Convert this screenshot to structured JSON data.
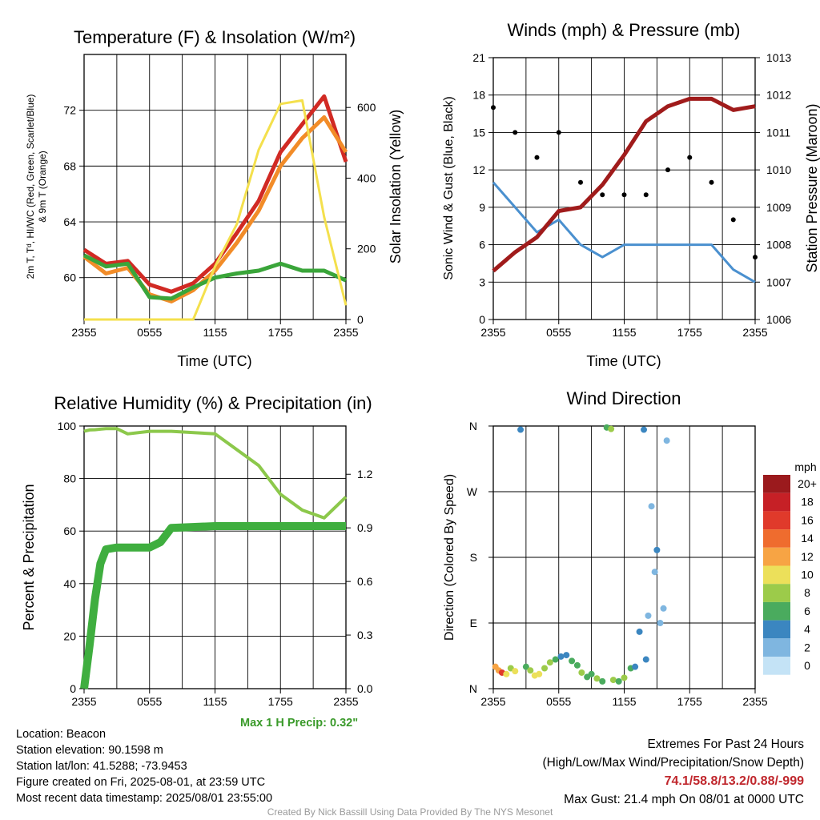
{
  "panels": {
    "temp": {
      "title": "Temperature (F) & Insolation (W/m²)",
      "xlabel": "Time (UTC)",
      "ylabel_left_line1": "2m T, Tᵈ, HI/WC (Red, Green, Scarlet/Blue)",
      "ylabel_left_line2": "& 9m T (Orange)",
      "ylabel_right": "Solar Insolation (Yellow)"
    },
    "wind": {
      "title": "Winds (mph) & Pressure (mb)",
      "xlabel": "Time (UTC)",
      "ylabel_left": "Sonic Wind & Gust (Blue, Black)",
      "ylabel_right": "Station Pressure (Maroon)"
    },
    "rh": {
      "title": "Relative Humidity (%) & Precipitation (in)",
      "ylabel_left": "Percent & Precipitation",
      "precip_note": "Max 1 H Precip: 0.32\""
    },
    "dir": {
      "title": "Wind Direction",
      "ylabel_left": "Direction (Colored By Speed)",
      "legend_title": "mph",
      "legend_labels": [
        "20+",
        "18",
        "16",
        "14",
        "12",
        "10",
        "8",
        "6",
        "4",
        "2",
        "0"
      ],
      "legend_colors": [
        "#9b1a1d",
        "#c62026",
        "#e03a2b",
        "#ef6c2e",
        "#f7a444",
        "#ece05a",
        "#9ccb4a",
        "#4aab5e",
        "#3b86c0",
        "#7fb6e0",
        "#c4e3f6"
      ]
    }
  },
  "info": {
    "location": "Location: Beacon",
    "elevation": "Station elevation: 90.1598 m",
    "latlon": "Station lat/lon: 41.5288; -73.9453",
    "created": "Figure created on Fri, 2025-08-01, at 23:59 UTC",
    "recent": "Most recent data timestamp: 2025/08/01 23:55:00"
  },
  "extremes": {
    "line1": "Extremes For Past 24 Hours",
    "line2": "(High/Low/Max Wind/Precipitation/Snow Depth)",
    "values": "74.1/58.8/13.2/0.88/-999",
    "gust": "Max Gust: 21.4 mph On 08/01 at 0000 UTC"
  },
  "credit": "Created By Nick Bassill Using Data Provided By The NYS Mesonet",
  "chart_data": [
    {
      "type": "line",
      "title": "Temperature (F) & Insolation (W/m²)",
      "xlabel": "Time (UTC)",
      "x_ticks": [
        "2355",
        "0555",
        "1155",
        "1755",
        "2355"
      ],
      "x": [
        0,
        2,
        4,
        6,
        8,
        10,
        12,
        14,
        16,
        18,
        20,
        22,
        24
      ],
      "ylim": [
        57,
        76
      ],
      "y_ticks": [
        60,
        64,
        68,
        72
      ],
      "y2lim": [
        0,
        750
      ],
      "y2_ticks": [
        0,
        200,
        400,
        600
      ],
      "series": [
        {
          "name": "2m T (Red)",
          "color": "#d12a24",
          "axis": "left",
          "values": [
            62.0,
            61.0,
            61.2,
            59.5,
            59.0,
            59.6,
            61.0,
            63.2,
            65.5,
            69.0,
            71.0,
            73.0,
            68.3
          ]
        },
        {
          "name": "9m T (Orange)",
          "color": "#f28c28",
          "axis": "left",
          "values": [
            61.5,
            60.3,
            60.7,
            58.8,
            58.3,
            59.1,
            60.5,
            62.5,
            64.8,
            68.0,
            70.0,
            71.5,
            69.0
          ]
        },
        {
          "name": "Td (Green)",
          "color": "#3aa53a",
          "axis": "left",
          "values": [
            61.6,
            60.8,
            61.0,
            58.6,
            58.5,
            59.3,
            60.0,
            60.3,
            60.5,
            61.0,
            60.5,
            60.5,
            59.8
          ]
        },
        {
          "name": "Solar Insolation (Yellow)",
          "color": "#f4e04d",
          "axis": "right",
          "values": [
            0,
            0,
            0,
            0,
            0,
            0,
            150,
            270,
            480,
            610,
            620,
            290,
            40
          ]
        }
      ]
    },
    {
      "type": "line",
      "title": "Winds (mph) & Pressure (mb)",
      "xlabel": "Time (UTC)",
      "x_ticks": [
        "2355",
        "0555",
        "1155",
        "1755",
        "2355"
      ],
      "x": [
        0,
        2,
        4,
        6,
        8,
        10,
        12,
        14,
        16,
        18,
        20,
        22,
        24
      ],
      "ylim": [
        0,
        21
      ],
      "y_ticks": [
        0,
        3,
        6,
        9,
        12,
        15,
        18,
        21
      ],
      "y2lim": [
        1006,
        1013
      ],
      "y2_ticks": [
        1006,
        1007,
        1008,
        1009,
        1010,
        1011,
        1012,
        1013
      ],
      "series": [
        {
          "name": "Sonic Wind (Blue)",
          "color": "#4a90cf",
          "axis": "left",
          "values": [
            11,
            9,
            7,
            8,
            6,
            5,
            6,
            6,
            6,
            6,
            6,
            4,
            3
          ]
        },
        {
          "name": "Gust (Black)",
          "color": "#000000",
          "axis": "left",
          "values": [
            17,
            15,
            13,
            15,
            11,
            10,
            10,
            10,
            12,
            13,
            11,
            8,
            5
          ]
        },
        {
          "name": "Station Pressure (Maroon)",
          "color": "#a01b1b",
          "axis": "right",
          "values": [
            1007.3,
            1007.8,
            1008.2,
            1008.9,
            1009.0,
            1009.6,
            1010.4,
            1011.3,
            1011.7,
            1011.9,
            1011.9,
            1011.6,
            1011.7
          ]
        }
      ]
    },
    {
      "type": "line",
      "title": "Relative Humidity (%) & Precipitation (in)",
      "x_ticks": [
        "2355",
        "0555",
        "1155",
        "1755",
        "2355"
      ],
      "x": [
        0,
        0.5,
        1,
        1.5,
        2,
        3,
        4,
        6,
        7,
        8,
        12,
        16,
        18,
        20,
        22,
        24
      ],
      "ylim": [
        0,
        100
      ],
      "y_ticks": [
        0,
        20,
        40,
        60,
        80,
        100
      ],
      "y2lim": [
        0.0,
        1.47
      ],
      "y2_ticks": [
        0.0,
        0.3,
        0.6,
        0.9,
        1.2
      ],
      "series": [
        {
          "name": "Relative Humidity",
          "color": "#8cc84b",
          "axis": "left",
          "values": [
            98,
            98.5,
            98.6,
            98.8,
            99,
            99,
            97,
            98,
            98,
            98,
            97,
            85,
            74,
            68,
            65,
            73
          ]
        },
        {
          "name": "Precipitation",
          "color": "#3fae3f",
          "axis": "right",
          "values": [
            0.0,
            0.24,
            0.5,
            0.7,
            0.78,
            0.79,
            0.79,
            0.79,
            0.82,
            0.9,
            0.91,
            0.91,
            0.91,
            0.91,
            0.91,
            0.91
          ]
        }
      ]
    },
    {
      "type": "scatter",
      "title": "Wind Direction",
      "x_ticks": [
        "2355",
        "0555",
        "1155",
        "1755",
        "2355"
      ],
      "y_ticks": [
        "N",
        "E",
        "S",
        "W",
        "N"
      ],
      "ylim": [
        0,
        360
      ],
      "colorbar": "mph",
      "points": [
        {
          "x": 0.2,
          "dir": 30,
          "speed": 12
        },
        {
          "x": 0.5,
          "dir": 25,
          "speed": 11
        },
        {
          "x": 0.8,
          "dir": 22,
          "speed": 16
        },
        {
          "x": 1.2,
          "dir": 20,
          "speed": 10
        },
        {
          "x": 1.6,
          "dir": 28,
          "speed": 8
        },
        {
          "x": 2.0,
          "dir": 24,
          "speed": 9
        },
        {
          "x": 2.5,
          "dir": 355,
          "speed": 4
        },
        {
          "x": 3.0,
          "dir": 30,
          "speed": 6
        },
        {
          "x": 3.4,
          "dir": 25,
          "speed": 8
        },
        {
          "x": 3.8,
          "dir": 18,
          "speed": 10
        },
        {
          "x": 4.2,
          "dir": 20,
          "speed": 9
        },
        {
          "x": 4.7,
          "dir": 28,
          "speed": 8
        },
        {
          "x": 5.2,
          "dir": 36,
          "speed": 7
        },
        {
          "x": 5.7,
          "dir": 40,
          "speed": 6
        },
        {
          "x": 6.2,
          "dir": 44,
          "speed": 4
        },
        {
          "x": 6.7,
          "dir": 46,
          "speed": 4
        },
        {
          "x": 7.2,
          "dir": 38,
          "speed": 5
        },
        {
          "x": 7.7,
          "dir": 32,
          "speed": 6
        },
        {
          "x": 8.1,
          "dir": 22,
          "speed": 7
        },
        {
          "x": 8.6,
          "dir": 16,
          "speed": 6
        },
        {
          "x": 9.0,
          "dir": 20,
          "speed": 5
        },
        {
          "x": 9.5,
          "dir": 14,
          "speed": 7
        },
        {
          "x": 10.0,
          "dir": 10,
          "speed": 6
        },
        {
          "x": 10.4,
          "dir": 358,
          "speed": 6
        },
        {
          "x": 10.8,
          "dir": 356,
          "speed": 7
        },
        {
          "x": 11.0,
          "dir": 12,
          "speed": 8
        },
        {
          "x": 11.5,
          "dir": 10,
          "speed": 6
        },
        {
          "x": 12.0,
          "dir": 15,
          "speed": 7
        },
        {
          "x": 12.6,
          "dir": 28,
          "speed": 6
        },
        {
          "x": 13.0,
          "dir": 30,
          "speed": 4
        },
        {
          "x": 13.4,
          "dir": 78,
          "speed": 4
        },
        {
          "x": 13.8,
          "dir": 355,
          "speed": 4
        },
        {
          "x": 14.0,
          "dir": 40,
          "speed": 3
        },
        {
          "x": 14.2,
          "dir": 100,
          "speed": 2
        },
        {
          "x": 14.5,
          "dir": 250,
          "speed": 2
        },
        {
          "x": 14.8,
          "dir": 160,
          "speed": 2
        },
        {
          "x": 15.0,
          "dir": 190,
          "speed": 3
        },
        {
          "x": 15.3,
          "dir": 90,
          "speed": 2
        },
        {
          "x": 15.6,
          "dir": 110,
          "speed": 2
        },
        {
          "x": 15.9,
          "dir": 340,
          "speed": 1
        }
      ]
    }
  ]
}
